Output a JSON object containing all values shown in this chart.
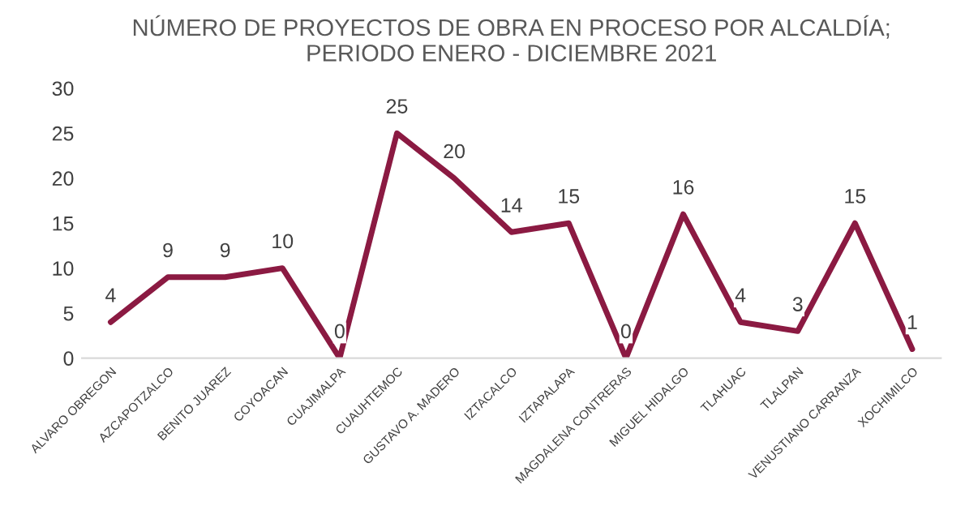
{
  "chart_data": {
    "type": "line",
    "title": "NÚMERO DE PROYECTOS DE OBRA EN PROCESO POR ALCALDÍA;\nPERIODO ENERO - DICIEMBRE 2021",
    "categories": [
      "ALVARO OBREGON",
      "AZCAPOTZALCO",
      "BENITO JUAREZ",
      "COYOACAN",
      "CUAJIMALPA",
      "CUAUHTEMOC",
      "GUSTAVO A. MADERO",
      "IZTACALCO",
      "IZTAPALAPA",
      "MAGDALENA CONTRERAS",
      "MIGUEL HIDALGO",
      "TLAHUAC",
      "TLALPAN",
      "VENUSTIANO CARRANZA",
      "XOCHIMILCO"
    ],
    "series": [
      {
        "color": "#8b1a42",
        "values": [
          4,
          9,
          9,
          10,
          0,
          25,
          20,
          14,
          15,
          0,
          16,
          4,
          3,
          15,
          1
        ]
      }
    ],
    "ylim": [
      0,
      30
    ],
    "yticks": [
      0,
      5,
      10,
      15,
      20,
      25,
      30
    ],
    "grid": false,
    "data_labels": true,
    "marker": "none",
    "line_style": "solid"
  }
}
